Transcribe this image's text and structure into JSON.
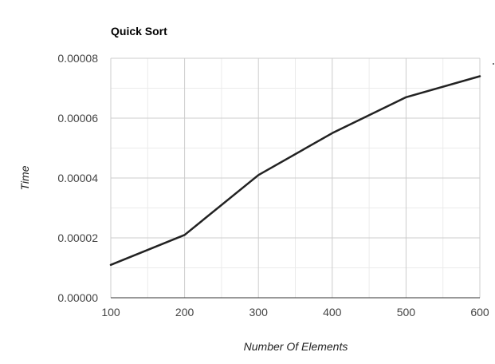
{
  "chart_data": {
    "type": "line",
    "title": "Quick Sort",
    "xlabel": "Number Of Elements",
    "ylabel": "Time",
    "xlim": [
      100,
      600
    ],
    "ylim": [
      0,
      8e-05
    ],
    "x_ticks": [
      100,
      200,
      300,
      400,
      500,
      600
    ],
    "x_tick_labels": [
      "100",
      "200",
      "300",
      "400",
      "500",
      "600"
    ],
    "y_ticks": [
      0,
      2e-05,
      4e-05,
      6e-05,
      8e-05
    ],
    "y_tick_labels": [
      "0.00000",
      "0.00002",
      "0.00004",
      "0.00006",
      "0.00008"
    ],
    "grid": true,
    "legend": "none",
    "series": [
      {
        "color": "#222222",
        "x": [
          100,
          200,
          300,
          400,
          500,
          600
        ],
        "y": [
          1.1e-05,
          2.1e-05,
          4.1e-05,
          5.5e-05,
          6.7e-05,
          7.4e-05
        ]
      }
    ],
    "colors": {
      "line": "#222222",
      "major_grid": "#cccccc",
      "minor_grid": "#ebebeb",
      "border": "#cccccc"
    }
  }
}
